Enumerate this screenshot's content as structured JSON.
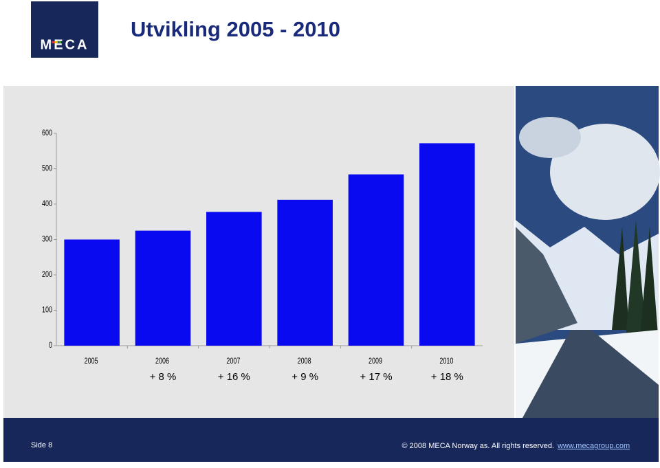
{
  "header": {
    "logo": "MECA"
  },
  "chart_data": {
    "type": "bar",
    "title": "Utvikling 2005 - 2010",
    "categories": [
      "2005",
      "2006",
      "2007",
      "2008",
      "2009",
      "2010"
    ],
    "values": [
      300,
      325,
      378,
      412,
      484,
      572
    ],
    "growth_labels": [
      null,
      "+ 8 %",
      "+ 16 %",
      "+ 9 %",
      "+ 17 %",
      "+ 18 %"
    ],
    "color": "#0a0af0",
    "ylim": [
      0,
      600
    ],
    "yticks": [
      0,
      100,
      200,
      300,
      400,
      500,
      600
    ],
    "grid": false
  },
  "footer": {
    "page": "Side 8",
    "copyright": "© 2008 MECA Norway as. All rights reserved.",
    "link": "www.mecagroup.com"
  }
}
